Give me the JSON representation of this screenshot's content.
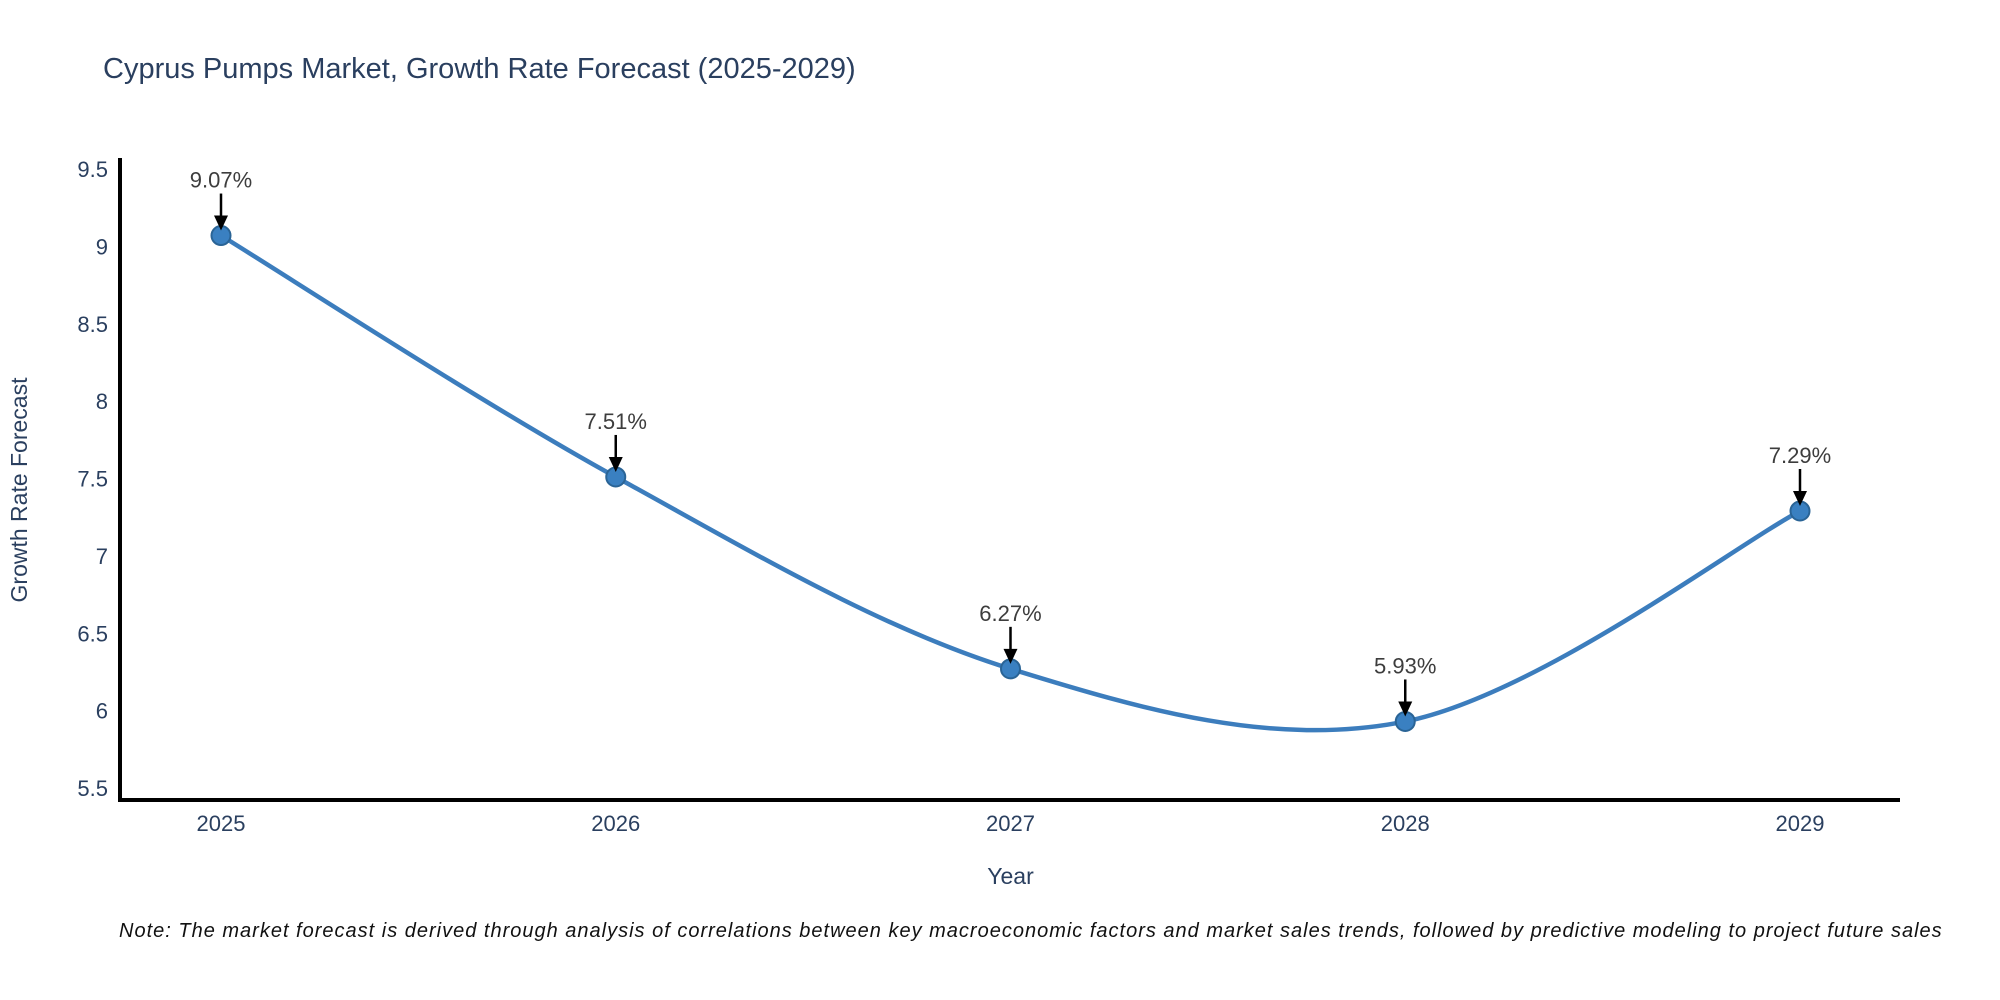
{
  "title": "Cyprus Pumps Market, Growth Rate Forecast (2025-2029)",
  "note": "Note: The market forecast is derived through analysis of correlations between key macroeconomic factors and market sales trends, followed by predictive modeling to project future sales",
  "chart_data": {
    "type": "line",
    "line_shape": "spline",
    "x": [
      2025,
      2026,
      2027,
      2028,
      2029
    ],
    "xtick_labels": [
      "2025",
      "2026",
      "2027",
      "2028",
      "2029"
    ],
    "series": [
      {
        "name": "Growth Rate Forecast",
        "values": [
          9.07,
          7.51,
          6.27,
          5.93,
          7.29
        ]
      }
    ],
    "point_labels": [
      "9.07%",
      "7.51%",
      "6.27%",
      "5.93%",
      "7.29%"
    ],
    "xlabel": "Year",
    "ylabel": "Growth Rate Forecast",
    "ylim": [
      5.5,
      9.5
    ],
    "yticks": [
      5.5,
      6,
      6.5,
      7,
      7.5,
      8,
      8.5,
      9,
      9.5
    ],
    "ytick_labels": [
      "5.5",
      "6",
      "6.5",
      "7",
      "7.5",
      "8",
      "8.5",
      "9",
      "9.5"
    ],
    "grid": false,
    "legend": "none",
    "markers": true,
    "annotation_arrows": true,
    "colors": {
      "line": "#3c7dbd",
      "marker_fill": "#3a80c1",
      "marker_edge": "#2a6496",
      "arrow": "#000000",
      "axis": "#000000",
      "tick_text": "#2a3f5f",
      "title_text": "#2a3f5f",
      "annotation_text": "#3d3d3d",
      "note_text": "#111111",
      "background": "#ffffff"
    }
  }
}
